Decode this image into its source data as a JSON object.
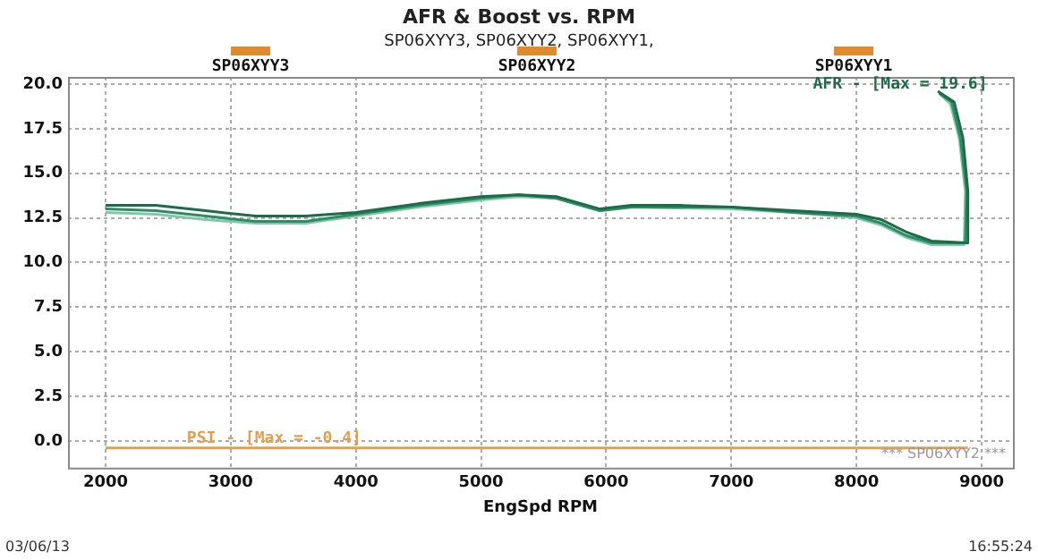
{
  "chart_data": {
    "type": "line",
    "title": "AFR & Boost vs. RPM",
    "subtitle": "SP06XYY3, SP06XYY2, SP06XYY1,",
    "xlabel": "EngSpd RPM",
    "xlim": [
      1700,
      9250
    ],
    "xticks": [
      2000,
      3000,
      4000,
      5000,
      6000,
      7000,
      8000,
      9000
    ],
    "ylim": [
      -1.5,
      20.4
    ],
    "yticks": [
      {
        "value": 0,
        "label": "0.0"
      },
      {
        "value": 2.5,
        "label": "2.5"
      },
      {
        "value": 5,
        "label": "5.0"
      },
      {
        "value": 7.5,
        "label": "7.5"
      },
      {
        "value": 10,
        "label": "10.0"
      },
      {
        "value": 12.5,
        "label": "12.5"
      },
      {
        "value": 15,
        "label": "15.0"
      },
      {
        "value": 17.5,
        "label": "17.5"
      },
      {
        "value": 20,
        "label": "20.0"
      }
    ],
    "grid": true,
    "legend": false,
    "marker": "none",
    "line_style": "solid",
    "series": [
      {
        "color": "#1e6b4a",
        "x": [
          2000,
          2400,
          2800,
          3200,
          3600,
          4000,
          4500,
          5000,
          5300,
          5600,
          5800,
          5950,
          6200,
          6600,
          7000,
          7500,
          8000,
          8200,
          8400,
          8600,
          8880,
          8890,
          8850,
          8780,
          8650
        ],
        "values": [
          13.2,
          13.2,
          12.9,
          12.6,
          12.6,
          12.8,
          13.3,
          13.7,
          13.8,
          13.7,
          13.3,
          13.0,
          13.2,
          13.2,
          13.1,
          12.9,
          12.7,
          12.4,
          11.7,
          11.2,
          11.1,
          14,
          17,
          19.0,
          19.6
        ]
      },
      {
        "color": "#2e8b66",
        "x": [
          2000,
          2400,
          2800,
          3200,
          3600,
          4000,
          4500,
          5000,
          5300,
          5600,
          5800,
          5950,
          6200,
          7000,
          7500,
          8000,
          8200,
          8400,
          8600,
          8870,
          8880,
          8830,
          8760,
          8660
        ],
        "values": [
          13.0,
          12.9,
          12.6,
          12.3,
          12.3,
          12.7,
          13.2,
          13.6,
          13.8,
          13.6,
          13.2,
          12.9,
          13.1,
          13.1,
          12.8,
          12.6,
          12.2,
          11.5,
          11.1,
          11.1,
          14,
          17,
          19.0,
          19.5
        ]
      },
      {
        "color": "#7fc8a9",
        "x": [
          2000,
          2400,
          2800,
          3200,
          3600,
          4000,
          4500,
          5000,
          5300,
          5600,
          5800,
          5950,
          6200,
          7000,
          7500,
          8000,
          8200,
          8400,
          8600,
          8860,
          8870,
          8820,
          8750,
          8670
        ],
        "values": [
          12.8,
          12.7,
          12.4,
          12.2,
          12.2,
          12.6,
          13.1,
          13.5,
          13.7,
          13.6,
          13.2,
          12.9,
          13.1,
          13.0,
          12.8,
          12.5,
          12.1,
          11.4,
          11.0,
          11.0,
          14,
          17,
          18.9,
          19.4
        ]
      },
      {
        "color": "#e0a050",
        "x": [
          2000,
          8890
        ],
        "values": [
          -0.4,
          -0.4
        ]
      }
    ],
    "annotations": [
      "AFR - [Max = 19.6]",
      {
        "text": "PSI - [Max = -0.4]",
        "x": 2650,
        "y": -0.4
      },
      "SP06XYY3",
      "SP06XYY2",
      "SP06XYY1",
      "*** SP06XYY2 ***",
      "03/06/13",
      "16:55:24"
    ]
  }
}
